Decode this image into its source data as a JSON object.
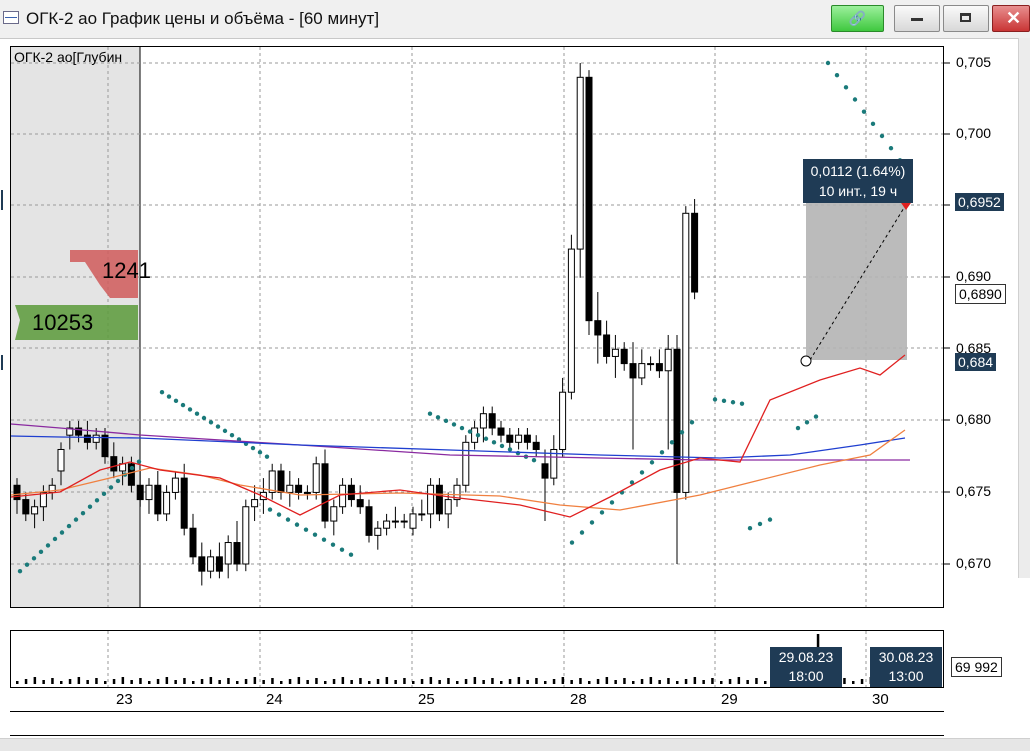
{
  "window": {
    "title": "ОГК-2 ао График цены и объёма - [60 минут]",
    "buttons": {
      "link": "🔗",
      "minimize": "minimize",
      "maximize": "maximize",
      "close": "✕"
    }
  },
  "depth": {
    "label": "ОГК-2 ао[Глубин",
    "ask_volume": "1241",
    "bid_volume": "10253"
  },
  "price_axis": {
    "ticks": [
      "0,705",
      "0,700",
      "0,690",
      "0,685",
      "0,680",
      "0,675",
      "0,670"
    ],
    "labels_visible": [
      "0,705",
      "0,700",
      "0,690",
      "0,680",
      "0,675",
      "0,670"
    ],
    "last_price": "0,6952",
    "bid_price": "0,6890",
    "highlight_price": "0,684"
  },
  "tooltip": {
    "line1": "0,0112 (1.64%)",
    "line2": "10 инт., 19 ч"
  },
  "volume": {
    "value": "69 992"
  },
  "dates": {
    "box1_line1": "29.08.23",
    "box1_line2": "18:00",
    "box2_line1": "30.08.23",
    "box2_line2": "13:00"
  },
  "days": [
    "23",
    "24",
    "25",
    "28",
    "29",
    "30"
  ],
  "colors": {
    "bull": "#ffffff",
    "bear": "#000000",
    "sar": "#1a7a7a",
    "ma_fast": "#e02020",
    "ma_slow": "#f08040",
    "ma_blue": "#1f3fd0",
    "ma_purple": "#8a2aa0",
    "accent_box": "#1f3b55"
  }
}
